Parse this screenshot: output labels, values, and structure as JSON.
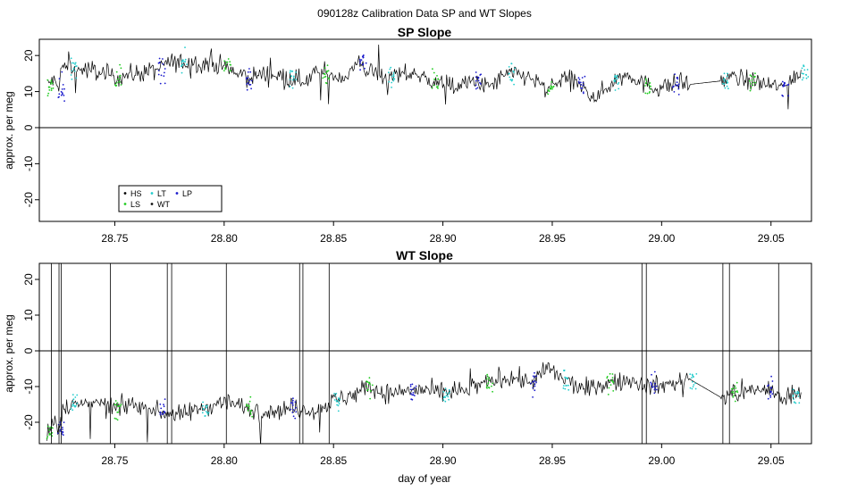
{
  "figure": {
    "title": "090128z   Calibration Data SP and WT Slopes"
  },
  "colors": {
    "HS": "#000000",
    "LS": "#22cc22",
    "LT": "#22cccc",
    "WT": "#111111",
    "LP": "#1a1acc",
    "trace": "#000000",
    "zero_line": "#000000",
    "frame": "#000000"
  },
  "chart_data": [
    {
      "type": "line",
      "title": "SP Slope",
      "xlabel": "",
      "ylabel": "approx. per meg",
      "xlim": [
        28.7155,
        29.0685
      ],
      "ylim": [
        -26,
        24.5
      ],
      "x_ticks": [
        28.75,
        28.8,
        28.85,
        28.9,
        28.95,
        29.0,
        29.05
      ],
      "x_tick_labels": [
        "28.75",
        "28.80",
        "28.85",
        "28.90",
        "28.95",
        "29.00",
        "29.05"
      ],
      "y_ticks": [
        -20,
        -10,
        0,
        10,
        20
      ],
      "y_tick_labels": [
        "-20",
        "-10",
        "0",
        "10",
        "20"
      ],
      "reference_line_y": 0,
      "legend": {
        "placement": "bottom-left",
        "entries": [
          {
            "label": "HS",
            "key": "HS"
          },
          {
            "label": "LT",
            "key": "LT"
          },
          {
            "label": "LP",
            "key": "LP"
          },
          {
            "label": "LS",
            "key": "LS"
          },
          {
            "label": "WT",
            "key": "WT"
          }
        ]
      },
      "series": [
        {
          "key": "trace",
          "x": [
            28.719,
            28.722,
            28.724,
            28.726,
            28.73,
            28.74,
            28.75,
            28.76,
            28.77,
            28.774,
            28.78,
            28.79,
            28.8,
            28.805,
            28.81,
            28.82,
            28.83,
            28.835,
            28.845,
            28.855,
            28.862,
            28.865,
            28.875,
            28.885,
            28.895,
            28.905,
            28.915,
            28.92,
            28.93,
            28.94,
            28.948,
            28.955,
            28.962,
            28.97,
            28.978,
            28.985,
            28.992,
            28.998,
            29.005,
            29.013,
            29.028,
            29.032,
            29.04,
            29.048,
            29.055,
            29.06,
            29.064
          ],
          "y": [
            12,
            13,
            11,
            17,
            16,
            16,
            14,
            15,
            16,
            18,
            18,
            18,
            17,
            15,
            14,
            15,
            14,
            13,
            15,
            14,
            18,
            16,
            14,
            15,
            13,
            11,
            13,
            11,
            15,
            14,
            10,
            14,
            12,
            8,
            13,
            15,
            12,
            11,
            12,
            12,
            13,
            14,
            13,
            12,
            11,
            14,
            15
          ]
        }
      ]
    },
    {
      "type": "line",
      "title": "WT Slope",
      "xlabel": "day of year",
      "ylabel": "approx. per meg",
      "xlim": [
        28.7155,
        29.0685
      ],
      "ylim": [
        -26,
        24.5
      ],
      "x_ticks": [
        28.75,
        28.8,
        28.85,
        28.9,
        28.95,
        29.0,
        29.05
      ],
      "x_tick_labels": [
        "28.75",
        "28.80",
        "28.85",
        "28.90",
        "28.95",
        "29.00",
        "29.05"
      ],
      "y_ticks": [
        -20,
        -10,
        0,
        10,
        20
      ],
      "y_tick_labels": [
        "-20",
        "-10",
        "0",
        "10",
        "20"
      ],
      "reference_line_y": 0,
      "series": [
        {
          "key": "trace",
          "x": [
            28.719,
            28.722,
            28.724,
            28.726,
            28.73,
            28.74,
            28.75,
            28.76,
            28.77,
            28.78,
            28.79,
            28.8,
            28.81,
            28.82,
            28.83,
            28.84,
            28.85,
            28.86,
            28.865,
            28.875,
            28.885,
            28.89,
            28.9,
            28.91,
            28.92,
            28.93,
            28.94,
            28.948,
            28.955,
            28.965,
            28.975,
            28.985,
            28.995,
            29.005,
            29.013,
            29.027,
            29.032,
            29.04,
            29.048,
            29.055,
            29.06,
            29.064
          ],
          "y": [
            -23,
            -20,
            -22,
            -16,
            -15,
            -15,
            -16,
            -15,
            -17,
            -18,
            -16,
            -14,
            -16,
            -17,
            -16,
            -17,
            -14,
            -12,
            -10,
            -12,
            -11,
            -11,
            -12,
            -11,
            -9,
            -7,
            -9,
            -5,
            -8,
            -11,
            -9,
            -8,
            -10,
            -9,
            -8,
            -13,
            -12,
            -11,
            -11,
            -13,
            -12,
            -11
          ]
        }
      ]
    }
  ]
}
